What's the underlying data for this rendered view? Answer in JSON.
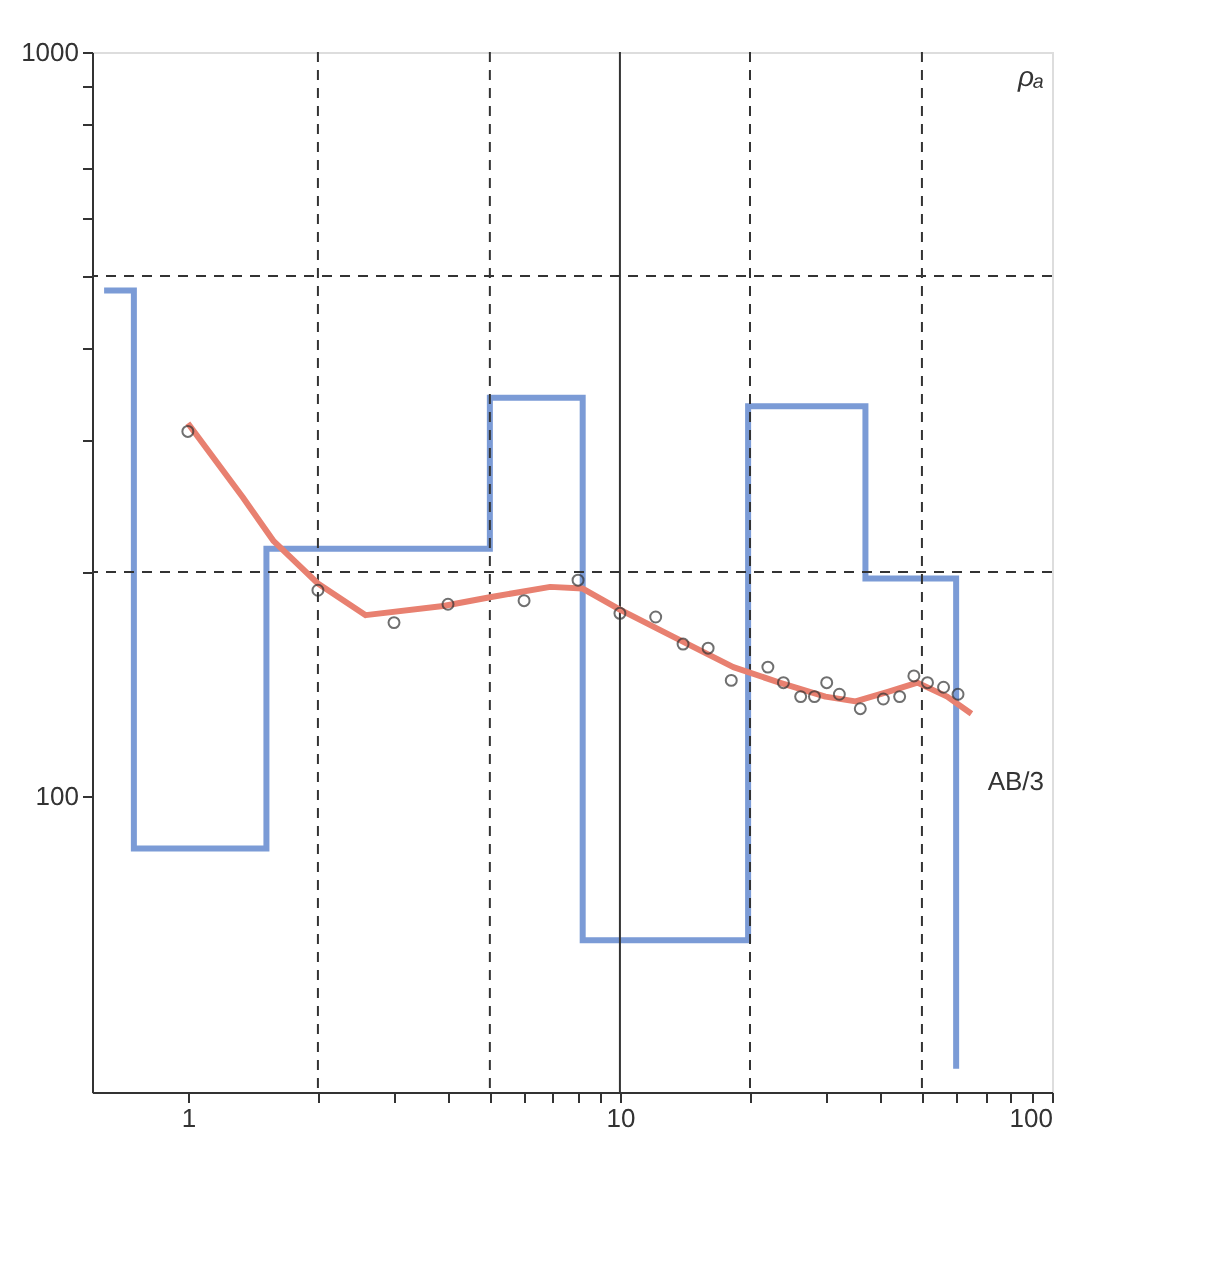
{
  "chart_data": {
    "type": "line",
    "log": "xy",
    "xlabel": "AB/3",
    "ylabel": "ρₐ",
    "xlim": [
      0.6,
      100
    ],
    "ylim": [
      40,
      1000
    ],
    "xticks": [
      1,
      {
        "value": 2,
        "label": null
      },
      {
        "value": 3,
        "label": null
      },
      {
        "value": 4,
        "label": null
      },
      {
        "value": 5,
        "label": null
      },
      {
        "value": 6,
        "label": null
      },
      {
        "value": 7,
        "label": null
      },
      {
        "value": 8,
        "label": null
      },
      {
        "value": 9,
        "label": null
      },
      10,
      {
        "value": 20,
        "label": null
      },
      {
        "value": 30,
        "label": null
      },
      {
        "value": 40,
        "label": null
      },
      {
        "value": 50,
        "label": null
      },
      {
        "value": 60,
        "label": null
      },
      {
        "value": 70,
        "label": null
      },
      {
        "value": 80,
        "label": null
      },
      {
        "value": 90,
        "label": null
      },
      100
    ],
    "yticks": [
      100,
      {
        "value": 200,
        "label": null
      },
      {
        "value": 300,
        "label": null
      },
      {
        "value": 400,
        "label": null
      },
      {
        "value": 500,
        "label": null
      },
      {
        "value": 600,
        "label": null
      },
      {
        "value": 700,
        "label": null
      },
      {
        "value": 800,
        "label": null
      },
      {
        "value": 900,
        "label": null
      },
      1000
    ],
    "ref_lines": [
      {
        "axis": "x",
        "value": 2,
        "line_style": "dashed",
        "color": "#333333"
      },
      {
        "axis": "x",
        "value": 5,
        "line_style": "dashed",
        "color": "#333333"
      },
      {
        "axis": "x",
        "value": 10,
        "line_style": "solid",
        "color": "#333333"
      },
      {
        "axis": "x",
        "value": 20,
        "line_style": "dashed",
        "color": "#333333"
      },
      {
        "axis": "x",
        "value": 50,
        "line_style": "dashed",
        "color": "#333333"
      },
      {
        "axis": "y",
        "value": 200,
        "line_style": "dashed",
        "color": "#333333"
      },
      {
        "axis": "y",
        "value": 500,
        "line_style": "dashed",
        "color": "#333333"
      }
    ],
    "series": [
      {
        "type": "step",
        "color": "#7b9bd6",
        "x": [
          0.64,
          0.75,
          1.52,
          5.0,
          8.2,
          19.8,
          37,
          60
        ],
        "values": [
          478,
          85,
          215,
          343,
          64,
          334,
          196,
          43
        ]
      },
      {
        "color": "#e88070",
        "line_style": "solid",
        "x": [
          1,
          1.34,
          1.58,
          2.0,
          2.58,
          3.9,
          5.0,
          6.9,
          8.2,
          10,
          13.2,
          18.3,
          23.4,
          29.9,
          35.1,
          41.7,
          48.8,
          57.2,
          65.1
        ],
        "values": [
          317,
          252,
          220,
          193,
          175,
          180,
          185,
          191,
          190,
          178,
          164,
          149,
          142,
          136,
          134,
          138,
          142,
          136,
          129
        ]
      },
      {
        "type": "scatter",
        "color": "#333333",
        "marker": "circle",
        "x": [
          1,
          2.0,
          3.0,
          4.0,
          6.0,
          8.0,
          10,
          12.1,
          14.0,
          16.0,
          18.1,
          22.0,
          23.9,
          26.2,
          28.2,
          30.1,
          32.2,
          36.0,
          40.7,
          44.4,
          47.9,
          51.5,
          56.1,
          60.6
        ],
        "values": [
          309,
          189,
          171,
          181,
          183,
          195,
          176,
          174,
          160,
          158,
          143,
          149,
          142,
          136,
          136,
          142,
          137,
          131,
          135,
          136,
          145,
          142,
          140,
          137
        ]
      }
    ]
  }
}
